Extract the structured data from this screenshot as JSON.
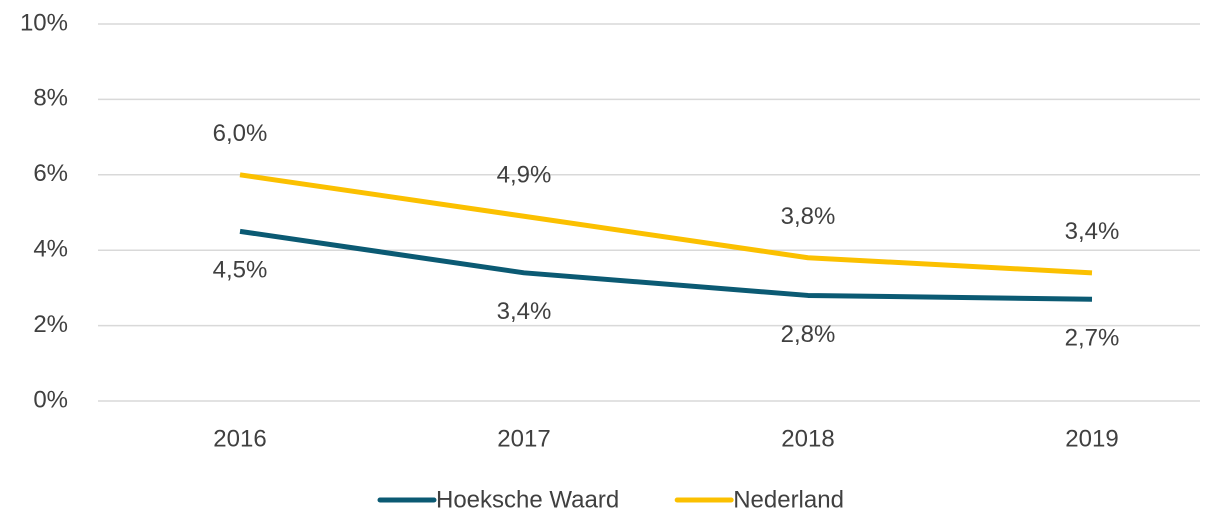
{
  "chart_data": {
    "type": "line",
    "categories": [
      "2016",
      "2017",
      "2018",
      "2019"
    ],
    "series": [
      {
        "name": "Hoeksche Waard",
        "color": "#0b5a73",
        "values": [
          4.5,
          3.4,
          2.8,
          2.7
        ],
        "value_labels": [
          "4,5%",
          "3,4%",
          "2,8%",
          "2,7%"
        ]
      },
      {
        "name": "Nederland",
        "color": "#fbc000",
        "values": [
          6.0,
          4.9,
          3.8,
          3.4
        ],
        "value_labels": [
          "6,0%",
          "4,9%",
          "3,8%",
          "3,4%"
        ]
      }
    ],
    "ylim": [
      0,
      10
    ],
    "yticks": [
      {
        "value": 0,
        "label": "0%"
      },
      {
        "value": 2,
        "label": "2%"
      },
      {
        "value": 4,
        "label": "4%"
      },
      {
        "value": 6,
        "label": "6%"
      },
      {
        "value": 8,
        "label": "8%"
      },
      {
        "value": 10,
        "label": "10%"
      }
    ],
    "grid": true,
    "legend": "bottom"
  }
}
